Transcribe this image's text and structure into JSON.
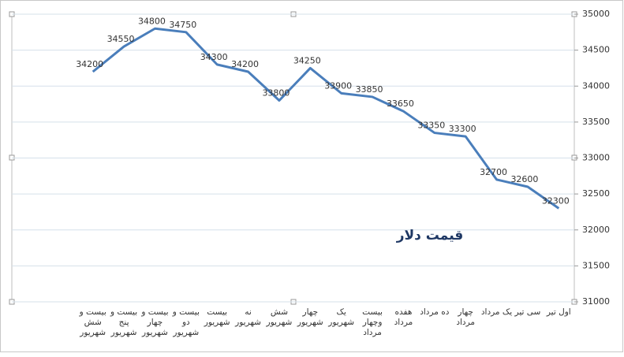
{
  "chart_data": {
    "type": "line",
    "title": "قیمت دلار",
    "categories": [
      "اول تیر",
      "سی تیر",
      "یک مرداد",
      "چهار مرداد",
      "ده مرداد",
      "هفده مرداد",
      "بیست وچهار مرداد",
      "یک شهریور",
      "چهار شهریور",
      "شش شهریور",
      "نه شهریور",
      "بیست شهریور",
      "بیست و دو شهریور",
      "بیست و چهار شهریور",
      "بیست و پنج شهریور",
      "بیست و شش شهریور"
    ],
    "values": [
      32300,
      32600,
      32700,
      33300,
      33350,
      33650,
      33850,
      33900,
      34250,
      33800,
      34200,
      34300,
      34750,
      34800,
      34550,
      34200
    ],
    "color": "#4a7ebb",
    "ylim": [
      31000,
      35000
    ],
    "yticks": [
      31000,
      31500,
      32000,
      32500,
      33000,
      33500,
      34000,
      34500,
      35000
    ],
    "grid": true,
    "x_reversed": true,
    "y_axis_side": "right",
    "data_labels": true
  }
}
